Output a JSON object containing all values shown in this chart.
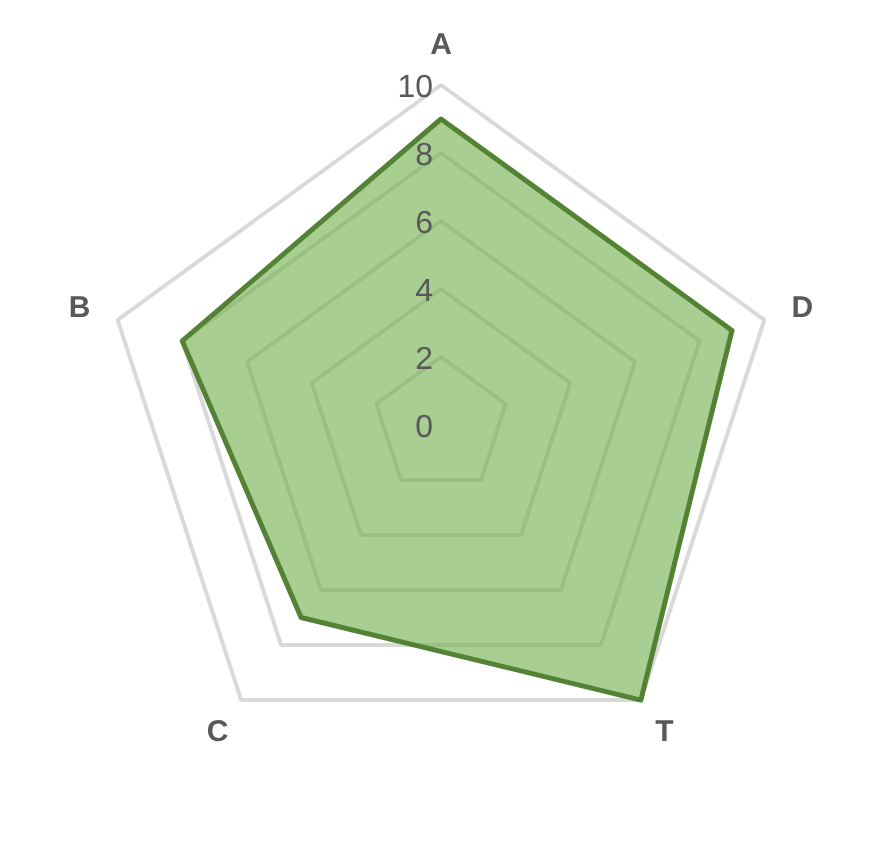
{
  "chart_data": {
    "type": "radar",
    "categories": [
      "A",
      "D",
      "T",
      "C",
      "B"
    ],
    "series": [
      {
        "color": "#70ad47",
        "values": [
          9,
          9,
          10,
          7,
          8
        ]
      }
    ],
    "ylim": [
      0,
      10
    ],
    "yticks": [
      0,
      2,
      4,
      6,
      8,
      10
    ],
    "grid": true
  }
}
